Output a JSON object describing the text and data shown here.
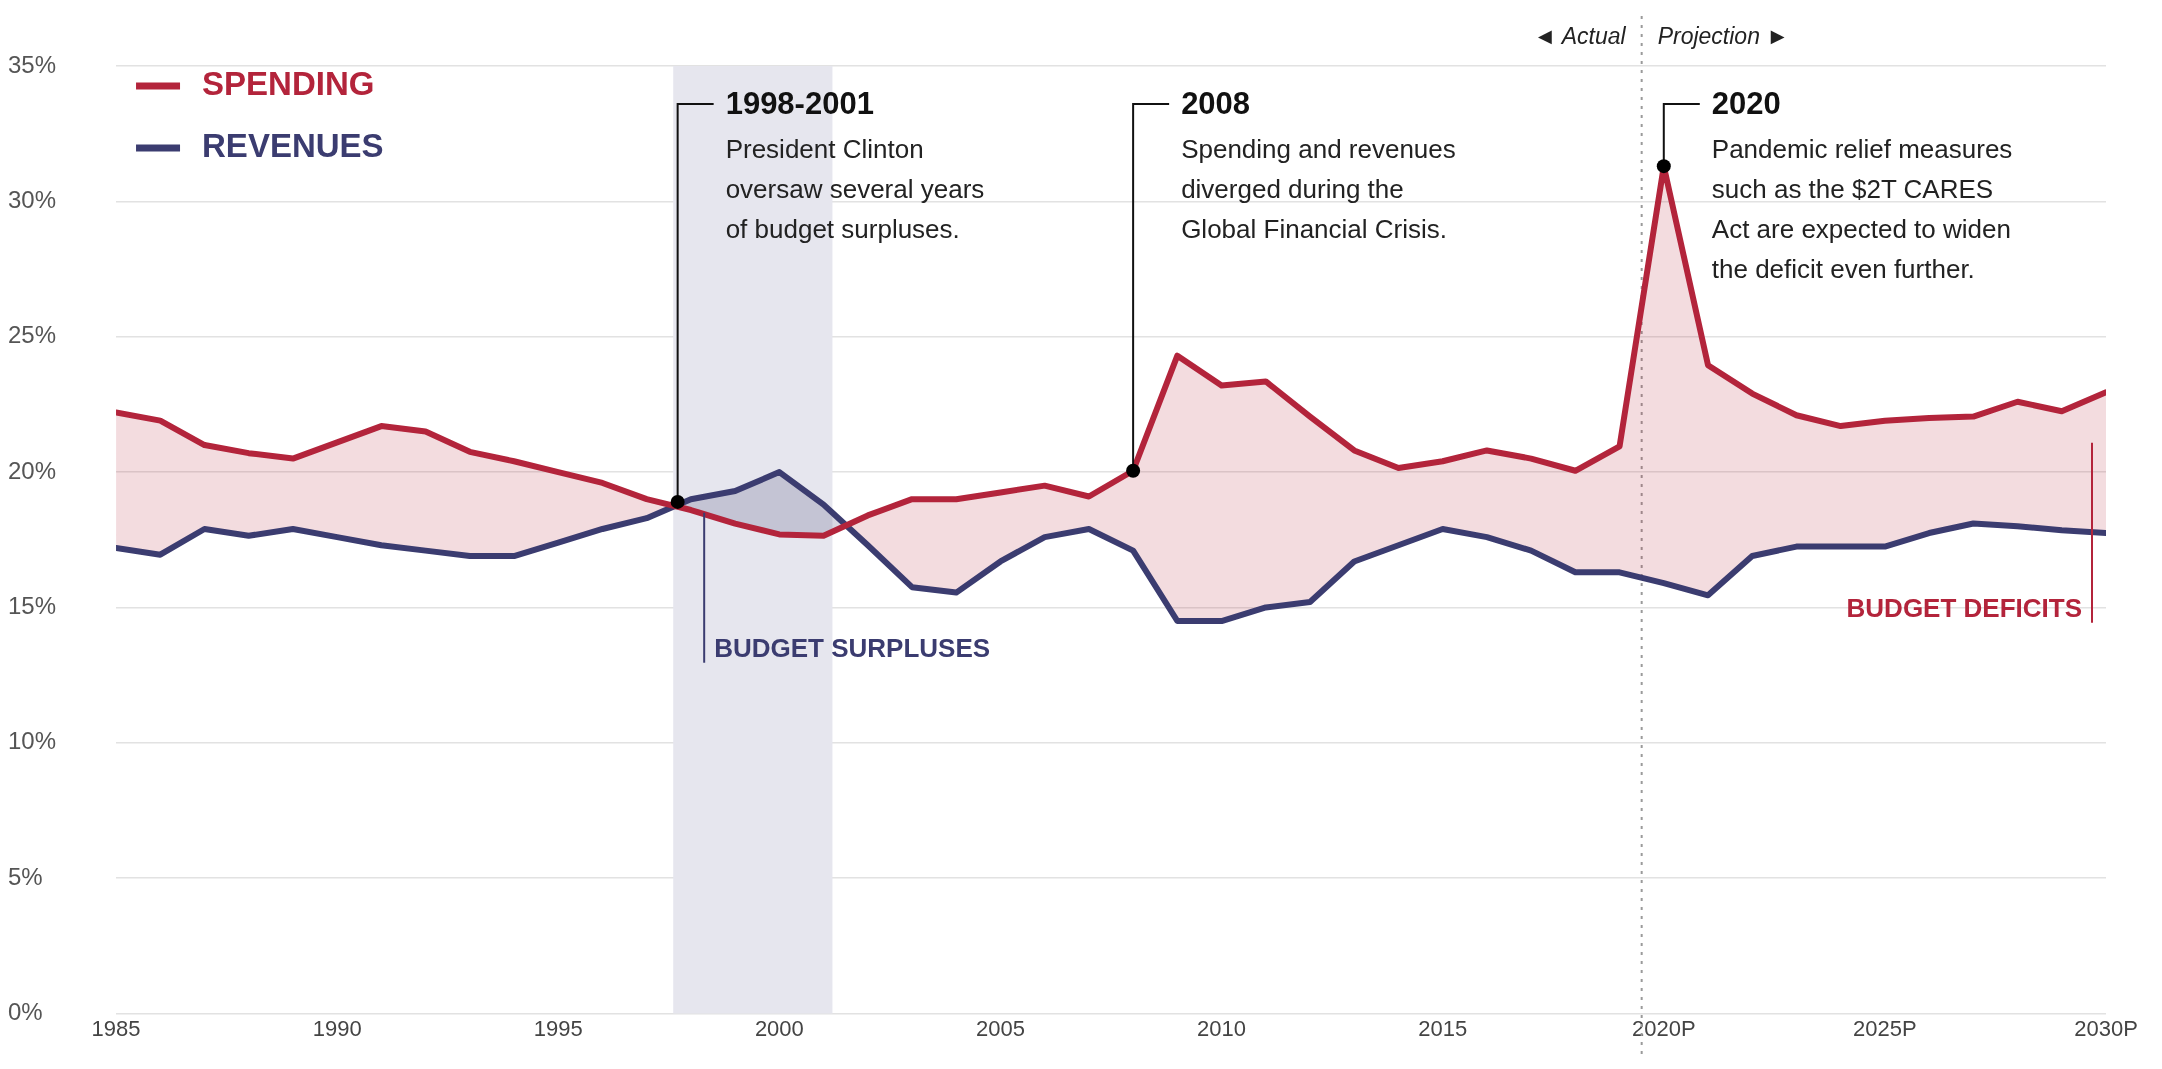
{
  "chart_data": {
    "type": "line",
    "x": [
      1985,
      1986,
      1987,
      1988,
      1989,
      1990,
      1991,
      1992,
      1993,
      1994,
      1995,
      1996,
      1997,
      1998,
      1999,
      2000,
      2001,
      2002,
      2003,
      2004,
      2005,
      2006,
      2007,
      2008,
      2009,
      2010,
      2011,
      2012,
      2013,
      2014,
      2015,
      2016,
      2017,
      2018,
      2019,
      2020,
      2021,
      2022,
      2023,
      2024,
      2025,
      2026,
      2027,
      2028,
      2029,
      2030
    ],
    "series": [
      {
        "name": "SPENDING",
        "color": "#b3243b",
        "values": [
          22.2,
          21.9,
          21.0,
          20.7,
          20.5,
          21.1,
          21.7,
          21.5,
          20.75,
          20.4,
          20.0,
          19.6,
          19.0,
          18.6,
          18.1,
          17.7,
          17.65,
          18.4,
          19.0,
          19.0,
          19.25,
          19.5,
          19.1,
          20.05,
          24.3,
          23.2,
          23.35,
          22.05,
          20.8,
          20.15,
          20.4,
          20.8,
          20.5,
          20.05,
          20.95,
          31.3,
          23.95,
          22.9,
          22.1,
          21.7,
          21.9,
          22.0,
          22.05,
          22.6,
          22.25,
          22.95
        ],
        "upper": [
          22.2,
          21.9,
          21.0,
          20.7,
          20.5,
          21.1,
          21.7,
          21.5,
          20.75,
          20.4,
          20.0,
          19.6,
          19.0,
          18.6,
          18.1,
          17.7,
          17.65,
          18.4,
          19.0,
          19.0,
          19.25,
          19.5,
          19.1,
          20.05,
          24.3,
          23.2,
          23.35,
          22.05,
          20.8,
          20.15,
          20.4,
          20.8,
          20.5,
          20.05,
          20.95,
          31.3,
          23.95,
          22.9,
          22.1,
          21.7,
          21.9,
          22.0,
          22.05,
          22.6,
          22.25,
          22.95
        ],
        "lower": [
          17.2,
          16.95,
          17.9,
          17.65,
          17.9,
          17.6,
          17.3,
          17.1,
          16.9,
          16.9,
          17.4,
          17.9,
          18.3,
          19.0,
          19.3,
          20.0,
          18.8,
          17.3,
          15.75,
          15.55,
          16.7,
          17.6,
          17.9,
          17.1,
          14.5,
          14.5,
          15.0,
          15.2,
          16.7,
          17.3,
          17.9,
          17.6,
          17.1,
          16.3,
          16.3,
          15.9,
          15.45,
          16.9,
          17.25,
          17.25,
          17.25,
          17.75,
          18.1,
          18.0,
          17.85,
          17.75
        ]
      },
      {
        "name": "REVENUES",
        "color": "#3b3c70",
        "values": [
          17.2,
          16.95,
          17.9,
          17.65,
          17.9,
          17.6,
          17.3,
          17.1,
          16.9,
          16.9,
          17.4,
          17.9,
          18.3,
          19.0,
          19.3,
          20.0,
          18.8,
          17.3,
          15.75,
          15.55,
          16.7,
          17.6,
          17.9,
          17.1,
          14.5,
          14.5,
          15.0,
          15.2,
          16.7,
          17.3,
          17.9,
          17.6,
          17.1,
          16.3,
          16.3,
          15.9,
          15.45,
          16.9,
          17.25,
          17.25,
          17.25,
          17.75,
          18.1,
          18.0,
          17.85,
          17.75
        ]
      }
    ],
    "xlim": [
      1985,
      2030
    ],
    "xticks": [
      1985,
      1990,
      1995,
      2000,
      2005,
      2010,
      2015,
      {
        "value": 2020,
        "label": "2020P"
      },
      {
        "value": 2025,
        "label": "2025P"
      },
      {
        "value": 2030,
        "label": "2030P"
      }
    ],
    "ylim": [
      0,
      35
    ],
    "yticks": [
      {
        "value": 0,
        "label": "0%"
      },
      {
        "value": 5,
        "label": "5%"
      },
      {
        "value": 10,
        "label": "10%"
      },
      {
        "value": 15,
        "label": "15%"
      },
      {
        "value": 20,
        "label": "20%"
      },
      {
        "value": 25,
        "label": "25%"
      },
      {
        "value": 30,
        "label": "30%"
      },
      {
        "value": 35,
        "label": "35%"
      }
    ],
    "grid": "y",
    "legend": "top left",
    "marker": "none",
    "line_style": "solid",
    "bands": [
      {
        "axis": "x",
        "from": 1997.6,
        "to": 2001.2,
        "color": "#e6e6ee"
      }
    ],
    "ref_lines": [
      {
        "axis": "x",
        "value": 2019.5,
        "color": "#9a9a9a",
        "line_style": "dotted"
      }
    ],
    "annotations": [
      "◄ Actual",
      "Projection ►",
      {
        "text": "1998-2001\nPresident Clinton\noversaw several years\nof budget surpluses.",
        "x": 1997.7,
        "y": 18.9
      },
      {
        "text": "2008\nSpending and revenues\ndiverged during the\nGlobal Financial Crisis.",
        "x": 2008,
        "y": 20.05
      },
      {
        "text": "2020\nPandemic relief measures\nsuch as the $2T CARES\nAct are expected to widen\nthe deficit even further.",
        "x": 2020,
        "y": 31.3
      },
      {
        "text": "BUDGET SURPLUSES",
        "x": 1998.3,
        "y": 18.5
      },
      "BUDGET DEFICITS"
    ]
  }
}
